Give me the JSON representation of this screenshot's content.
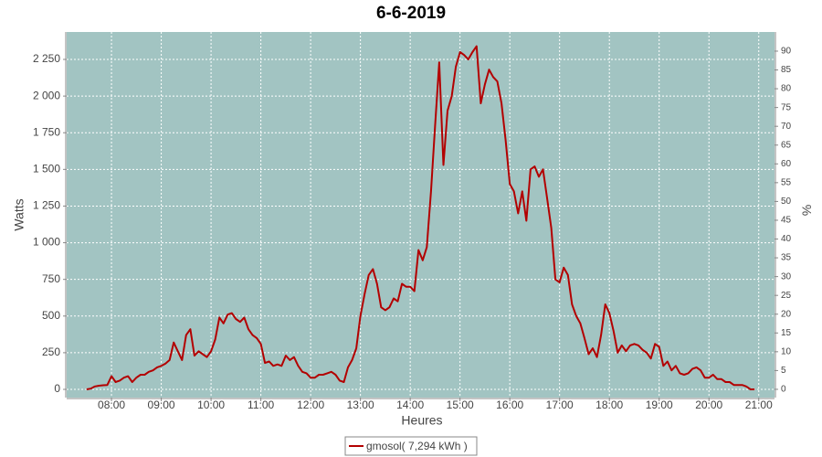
{
  "chart_data": {
    "type": "line",
    "title": "6-6-2019",
    "x_label": "Heures",
    "y_label": "Watts",
    "y2_label": "%",
    "x": [
      "07:30",
      "07:35",
      "07:40",
      "07:45",
      "07:50",
      "07:55",
      "08:00",
      "08:05",
      "08:10",
      "08:15",
      "08:20",
      "08:25",
      "08:30",
      "08:35",
      "08:40",
      "08:45",
      "08:50",
      "08:55",
      "09:00",
      "09:05",
      "09:10",
      "09:15",
      "09:20",
      "09:25",
      "09:30",
      "09:35",
      "09:40",
      "09:45",
      "09:50",
      "09:55",
      "10:00",
      "10:05",
      "10:10",
      "10:15",
      "10:20",
      "10:25",
      "10:30",
      "10:35",
      "10:40",
      "10:45",
      "10:50",
      "10:55",
      "11:00",
      "11:05",
      "11:10",
      "11:15",
      "11:20",
      "11:25",
      "11:30",
      "11:35",
      "11:40",
      "11:45",
      "11:50",
      "11:55",
      "12:00",
      "12:05",
      "12:10",
      "12:15",
      "12:20",
      "12:25",
      "12:30",
      "12:35",
      "12:40",
      "12:45",
      "12:50",
      "12:55",
      "13:00",
      "13:05",
      "13:10",
      "13:15",
      "13:20",
      "13:25",
      "13:30",
      "13:35",
      "13:40",
      "13:45",
      "13:50",
      "13:55",
      "14:00",
      "14:05",
      "14:10",
      "14:15",
      "14:20",
      "14:25",
      "14:30",
      "14:35",
      "14:40",
      "14:45",
      "14:50",
      "14:55",
      "15:00",
      "15:05",
      "15:10",
      "15:15",
      "15:20",
      "15:25",
      "15:30",
      "15:35",
      "15:40",
      "15:45",
      "15:50",
      "15:55",
      "16:00",
      "16:05",
      "16:10",
      "16:15",
      "16:20",
      "16:25",
      "16:30",
      "16:35",
      "16:40",
      "16:45",
      "16:50",
      "16:55",
      "17:00",
      "17:05",
      "17:10",
      "17:15",
      "17:20",
      "17:25",
      "17:30",
      "17:35",
      "17:40",
      "17:45",
      "17:50",
      "17:55",
      "18:00",
      "18:05",
      "18:10",
      "18:15",
      "18:20",
      "18:25",
      "18:30",
      "18:35",
      "18:40",
      "18:45",
      "18:50",
      "18:55",
      "19:00",
      "19:05",
      "19:10",
      "19:15",
      "19:20",
      "19:25",
      "19:30",
      "19:35",
      "19:40",
      "19:45",
      "19:50",
      "19:55",
      "20:00",
      "20:05",
      "20:10",
      "20:15",
      "20:20",
      "20:25",
      "20:30",
      "20:35",
      "20:40",
      "20:45",
      "20:50",
      "20:55"
    ],
    "series": [
      {
        "name": "gmosol( 7,294 kWh )",
        "color": "#b30000",
        "values": [
          0,
          5,
          20,
          25,
          28,
          30,
          90,
          50,
          60,
          80,
          90,
          50,
          80,
          100,
          100,
          120,
          130,
          150,
          160,
          175,
          200,
          320,
          260,
          200,
          370,
          410,
          230,
          260,
          240,
          220,
          260,
          340,
          490,
          450,
          510,
          520,
          480,
          460,
          490,
          410,
          370,
          350,
          310,
          180,
          190,
          160,
          170,
          160,
          230,
          200,
          220,
          160,
          120,
          110,
          80,
          80,
          100,
          100,
          110,
          120,
          100,
          60,
          50,
          150,
          200,
          280,
          500,
          650,
          780,
          820,
          720,
          560,
          540,
          560,
          620,
          600,
          720,
          700,
          700,
          670,
          950,
          880,
          970,
          1350,
          1800,
          2230,
          1530,
          1900,
          2000,
          2200,
          2300,
          2280,
          2250,
          2300,
          2340,
          1950,
          2080,
          2180,
          2130,
          2100,
          1950,
          1700,
          1400,
          1350,
          1200,
          1350,
          1150,
          1500,
          1520,
          1450,
          1500,
          1300,
          1100,
          750,
          730,
          830,
          780,
          580,
          500,
          450,
          350,
          240,
          280,
          220,
          370,
          580,
          520,
          400,
          250,
          300,
          260,
          300,
          310,
          300,
          270,
          250,
          210,
          310,
          290,
          160,
          190,
          130,
          160,
          110,
          100,
          110,
          140,
          150,
          130,
          80,
          80,
          100,
          70,
          70,
          50,
          50,
          30,
          30,
          30,
          20,
          0,
          0
        ]
      }
    ],
    "xlim": [
      "07:06",
      "21:19"
    ],
    "xticks": [
      "08:00",
      "09:00",
      "10:00",
      "11:00",
      "12:00",
      "13:00",
      "14:00",
      "15:00",
      "16:00",
      "17:00",
      "18:00",
      "19:00",
      "20:00",
      "21:00"
    ],
    "ylim": [
      -56,
      2437
    ],
    "yticks": [
      0,
      250,
      500,
      750,
      {
        "value": 1000,
        "label": "1 000"
      },
      {
        "value": 1250,
        "label": "1 250"
      },
      {
        "value": 1500,
        "label": "1 500"
      },
      {
        "value": 1750,
        "label": "1 750"
      },
      {
        "value": 2000,
        "label": "2 000"
      },
      {
        "value": 2250,
        "label": "2 250"
      }
    ],
    "y2lim": [
      -2.2,
      95.1
    ],
    "y2ticks": [
      0,
      5,
      10,
      15,
      20,
      25,
      30,
      35,
      40,
      45,
      50,
      55,
      60,
      65,
      70,
      75,
      80,
      85,
      90
    ],
    "grid": true,
    "plot_background": "#a2c4c2",
    "legend": "bottom"
  }
}
